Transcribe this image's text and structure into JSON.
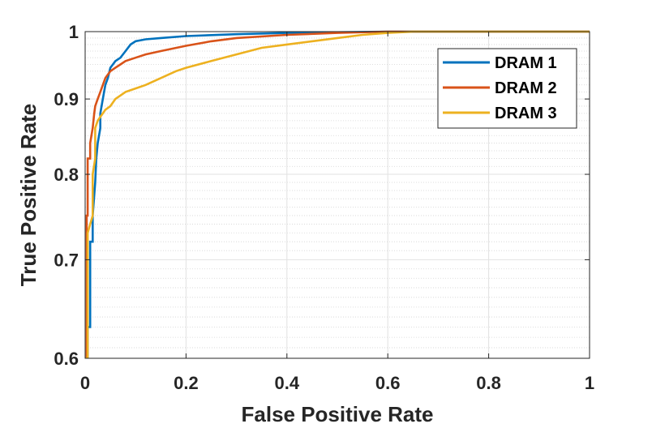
{
  "chart_data": {
    "type": "line",
    "title": "",
    "xlabel": "False Positive Rate",
    "ylabel": "True Positive Rate",
    "xlim": [
      0,
      1
    ],
    "ylim": [
      0.6,
      1
    ],
    "y_scale": "log",
    "grid": true,
    "legend_position": "top-right",
    "x_ticks": [
      0,
      0.2,
      0.4,
      0.6,
      0.8,
      1
    ],
    "x_tick_labels": [
      "0",
      "0.2",
      "0.4",
      "0.6",
      "0.8",
      "1"
    ],
    "y_ticks": [
      0.6,
      0.7,
      0.8,
      0.9,
      1
    ],
    "y_tick_labels": [
      "0.6",
      "0.7",
      "0.8",
      "0.9",
      "1"
    ],
    "series": [
      {
        "name": "DRAM 1",
        "color": "#0072BD",
        "x": [
          0.0,
          0.005,
          0.005,
          0.01,
          0.01,
          0.015,
          0.015,
          0.02,
          0.022,
          0.025,
          0.03,
          0.03,
          0.035,
          0.04,
          0.045,
          0.05,
          0.055,
          0.06,
          0.07,
          0.08,
          0.09,
          0.1,
          0.12,
          0.15,
          0.2,
          0.3,
          0.4,
          0.5,
          0.6,
          1.0
        ],
        "y": [
          0.6,
          0.6,
          0.63,
          0.63,
          0.72,
          0.72,
          0.75,
          0.79,
          0.82,
          0.84,
          0.86,
          0.88,
          0.9,
          0.92,
          0.93,
          0.945,
          0.95,
          0.955,
          0.96,
          0.97,
          0.98,
          0.985,
          0.988,
          0.99,
          0.993,
          0.996,
          0.998,
          0.999,
          1.0,
          1.0
        ]
      },
      {
        "name": "DRAM 2",
        "color": "#D95319",
        "x": [
          0.0,
          0.003,
          0.003,
          0.005,
          0.005,
          0.01,
          0.01,
          0.015,
          0.018,
          0.02,
          0.025,
          0.03,
          0.035,
          0.04,
          0.045,
          0.05,
          0.06,
          0.07,
          0.08,
          0.1,
          0.12,
          0.15,
          0.2,
          0.25,
          0.3,
          0.4,
          0.5,
          0.6,
          1.0
        ],
        "y": [
          0.6,
          0.6,
          0.75,
          0.75,
          0.82,
          0.82,
          0.84,
          0.86,
          0.88,
          0.89,
          0.9,
          0.91,
          0.92,
          0.93,
          0.935,
          0.94,
          0.945,
          0.95,
          0.955,
          0.96,
          0.965,
          0.97,
          0.978,
          0.985,
          0.99,
          0.995,
          0.998,
          1.0,
          1.0
        ]
      },
      {
        "name": "DRAM 3",
        "color": "#EDB120",
        "x": [
          0.0,
          0.005,
          0.005,
          0.01,
          0.015,
          0.015,
          0.02,
          0.02,
          0.025,
          0.03,
          0.035,
          0.04,
          0.05,
          0.06,
          0.07,
          0.08,
          0.1,
          0.12,
          0.15,
          0.18,
          0.2,
          0.25,
          0.3,
          0.35,
          0.4,
          0.45,
          0.5,
          0.55,
          0.6,
          0.65,
          0.7,
          1.0
        ],
        "y": [
          0.6,
          0.6,
          0.73,
          0.74,
          0.75,
          0.8,
          0.82,
          0.86,
          0.87,
          0.875,
          0.88,
          0.885,
          0.89,
          0.9,
          0.905,
          0.91,
          0.915,
          0.92,
          0.93,
          0.94,
          0.945,
          0.955,
          0.965,
          0.975,
          0.98,
          0.985,
          0.99,
          0.995,
          0.998,
          1.0,
          1.0,
          1.0
        ]
      }
    ]
  }
}
